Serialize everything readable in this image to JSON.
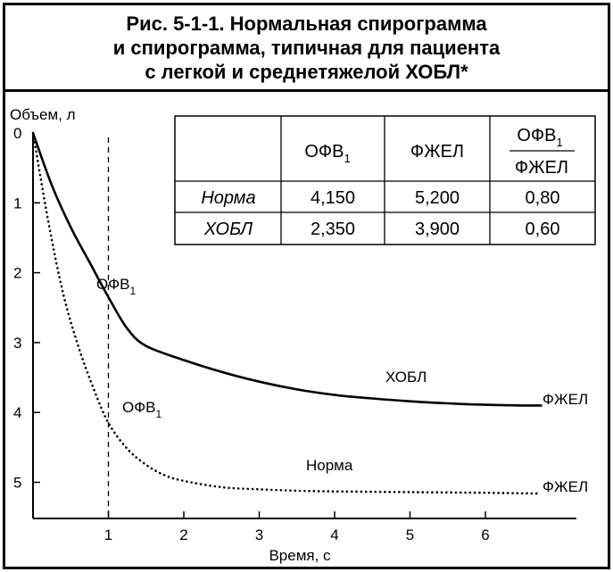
{
  "title": {
    "line1": "Рис. 5-1-1. Нормальная спирограмма",
    "line2": "и спирограмма, типичная для пациента",
    "line3": "с легкой и среднетяжелой ХОБЛ*"
  },
  "table": {
    "header": {
      "fev1_main": "ОФВ",
      "fev1_sub": "1",
      "fvc": "ФЖЕЛ",
      "ratio_num_main": "ОФВ",
      "ratio_num_sub": "1",
      "ratio_den": "ФЖЕЛ"
    },
    "rows": [
      {
        "label": "Норма",
        "fev1": "4,150",
        "fvc": "5,200",
        "ratio": "0,80"
      },
      {
        "label": "ХОБЛ",
        "fev1": "2,350",
        "fvc": "3,900",
        "ratio": "0,60"
      }
    ]
  },
  "chart_data": {
    "type": "line",
    "xlabel": "Время, с",
    "ylabel": "Объем, л",
    "xlim": [
      0,
      7.2
    ],
    "ylim": [
      0,
      6.2
    ],
    "y_inverted": true,
    "xticks": [
      1,
      2,
      3,
      4,
      5,
      6
    ],
    "yticks": [
      0,
      1,
      2,
      3,
      4,
      5
    ],
    "reference_line": {
      "x": 1,
      "style": "dashed"
    },
    "series": [
      {
        "name": "ХОБЛ",
        "style": "solid",
        "x": [
          0,
          0.25,
          0.5,
          0.75,
          1.0,
          1.25,
          1.5,
          2.0,
          2.5,
          3.0,
          3.5,
          4.0,
          4.5,
          5.0,
          5.5,
          6.0,
          6.5,
          6.75
        ],
        "y": [
          0,
          0.75,
          1.35,
          1.85,
          2.35,
          2.8,
          3.05,
          3.25,
          3.42,
          3.56,
          3.67,
          3.75,
          3.8,
          3.84,
          3.87,
          3.89,
          3.9,
          3.9
        ]
      },
      {
        "name": "Норма",
        "style": "dotted",
        "x": [
          0,
          0.2,
          0.4,
          0.6,
          0.8,
          1.0,
          1.25,
          1.5,
          1.75,
          2.0,
          2.5,
          3.0,
          3.5,
          4.0,
          5.0,
          6.0,
          6.7
        ],
        "y": [
          0,
          1.25,
          2.3,
          3.05,
          3.65,
          4.15,
          4.52,
          4.75,
          4.9,
          4.98,
          5.07,
          5.1,
          5.12,
          5.13,
          5.14,
          5.15,
          5.16
        ]
      }
    ],
    "annotations": {
      "copd_fev1_main": "ОФВ",
      "copd_fev1_sub": "1",
      "norm_fev1_main": "ОФВ",
      "norm_fev1_sub": "1",
      "copd_label": "ХОБЛ",
      "norm_label": "Норма",
      "copd_fvc": "ФЖЕЛ",
      "norm_fvc": "ФЖЕЛ"
    }
  }
}
